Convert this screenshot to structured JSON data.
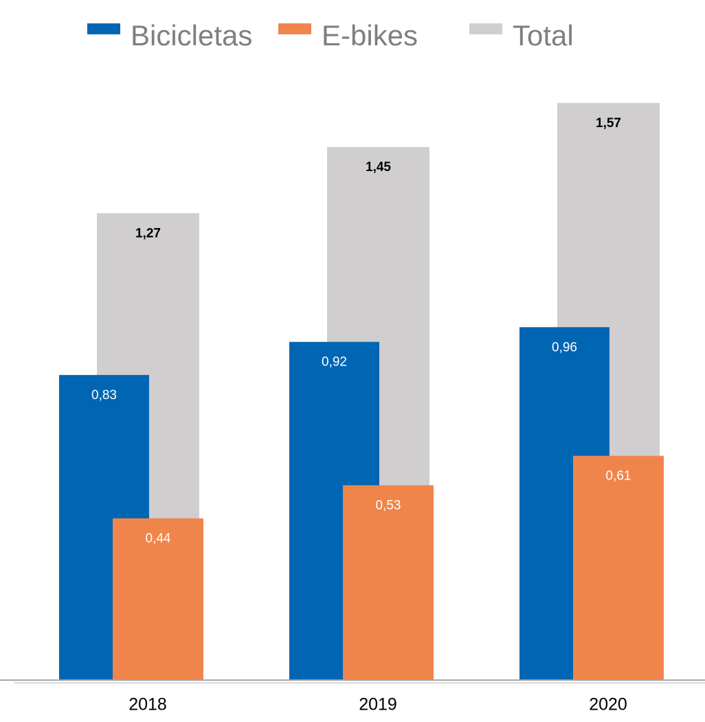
{
  "chart_data": {
    "type": "bar",
    "categories": [
      "2018",
      "2019",
      "2020"
    ],
    "series": [
      {
        "name": "Bicicletas",
        "color": "#0066b3",
        "values": [
          0.83,
          0.92,
          0.96
        ],
        "value_labels": [
          "0,83",
          "0,92",
          "0,96"
        ]
      },
      {
        "name": "E-bikes",
        "color": "#f0854c",
        "values": [
          0.44,
          0.53,
          0.61
        ],
        "value_labels": [
          "0,44",
          "0,53",
          "0,61"
        ]
      },
      {
        "name": "Total",
        "color": "#d0cecf",
        "values": [
          1.27,
          1.45,
          1.57
        ],
        "value_labels": [
          "1,27",
          "1,45",
          "1,57"
        ]
      }
    ],
    "ylim": [
      0,
      1.85
    ]
  }
}
